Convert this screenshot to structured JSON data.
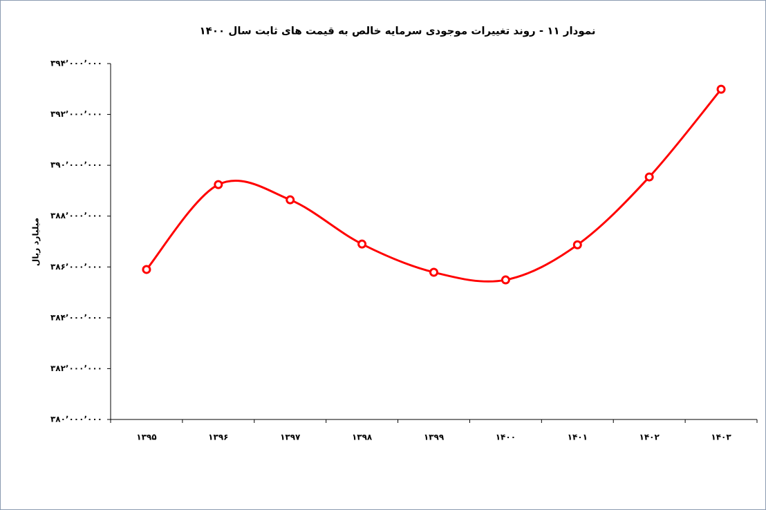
{
  "chart_data": {
    "type": "line",
    "title": "نمودار ۱۱ - روند تغییرات موجودی سرمایه خالص به قیمت های ثابت سال ۱۴۰۰",
    "ylabel": "میلیارد ریال",
    "categories": [
      "۱۳۹۵",
      "۱۳۹۶",
      "۱۳۹۷",
      "۱۳۹۸",
      "۱۳۹۹",
      "۱۴۰۰",
      "۱۴۰۱",
      "۱۴۰۲",
      "۱۴۰۳"
    ],
    "series": [
      {
        "name": "موجودی سرمایه خالص",
        "color": "#ff0000",
        "values": [
          385900000,
          389240000,
          388640000,
          386900000,
          385790000,
          385490000,
          386870000,
          389540000,
          392990000
        ]
      }
    ],
    "ylim": [
      380000000,
      394000000
    ],
    "yticks": [
      {
        "value": 380000000,
        "label": "۳۸۰٬۰۰۰٬۰۰۰"
      },
      {
        "value": 382000000,
        "label": "۳۸۲٬۰۰۰٬۰۰۰"
      },
      {
        "value": 384000000,
        "label": "۳۸۴٬۰۰۰٬۰۰۰"
      },
      {
        "value": 386000000,
        "label": "۳۸۶٬۰۰۰٬۰۰۰"
      },
      {
        "value": 388000000,
        "label": "۳۸۸٬۰۰۰٬۰۰۰"
      },
      {
        "value": 390000000,
        "label": "۳۹۰٬۰۰۰٬۰۰۰"
      },
      {
        "value": 392000000,
        "label": "۳۹۲٬۰۰۰٬۰۰۰"
      },
      {
        "value": 394000000,
        "label": "۳۹۴٬۰۰۰٬۰۰۰"
      }
    ],
    "grid": false,
    "smooth": true
  }
}
